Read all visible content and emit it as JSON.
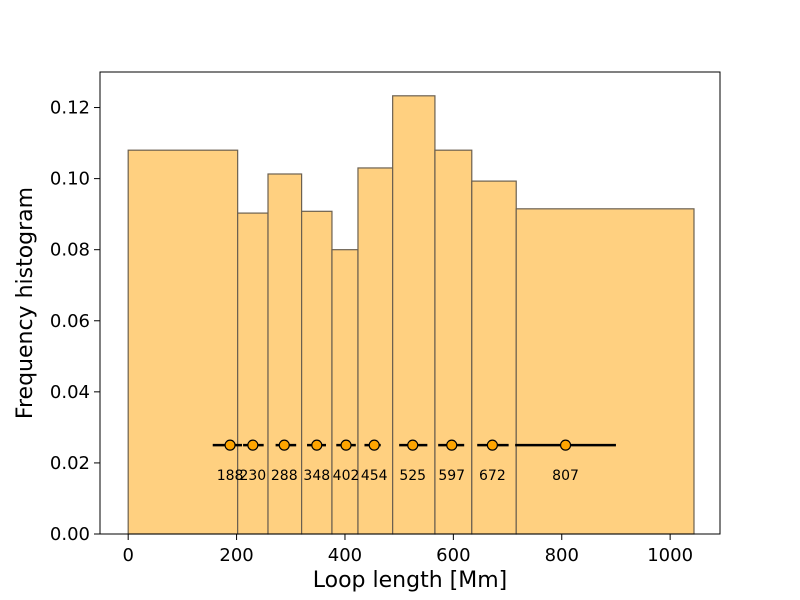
{
  "chart_data": {
    "type": "bar",
    "title": "",
    "xlabel": "Loop length [Mm]",
    "ylabel": "Frequency histogram",
    "xlim": [
      -52,
      1092
    ],
    "ylim": [
      0,
      0.13
    ],
    "x_ticks": [
      0,
      200,
      400,
      600,
      800,
      1000
    ],
    "y_ticks": [
      0.0,
      0.02,
      0.04,
      0.06,
      0.08,
      0.1,
      0.12
    ],
    "y_tick_labels": [
      "0.00",
      "0.02",
      "0.04",
      "0.06",
      "0.08",
      "0.10",
      "0.12"
    ],
    "grid": false,
    "bar_color": "#ffd080",
    "bar_edge_color": "#6b6050",
    "bins": [
      {
        "left": 0,
        "right": 202,
        "value": 0.108
      },
      {
        "left": 202,
        "right": 258,
        "value": 0.0903
      },
      {
        "left": 258,
        "right": 320,
        "value": 0.1013
      },
      {
        "left": 320,
        "right": 376,
        "value": 0.0908
      },
      {
        "left": 376,
        "right": 424,
        "value": 0.08
      },
      {
        "left": 424,
        "right": 488,
        "value": 0.103
      },
      {
        "left": 488,
        "right": 566,
        "value": 0.1233
      },
      {
        "left": 566,
        "right": 634,
        "value": 0.108
      },
      {
        "left": 634,
        "right": 716,
        "value": 0.0993
      },
      {
        "left": 716,
        "right": 1044,
        "value": 0.0915
      }
    ],
    "markers": {
      "y": 0.025,
      "color": "#ffa500",
      "points": [
        {
          "x": 188,
          "low": 156,
          "high": 210,
          "label": "188"
        },
        {
          "x": 230,
          "low": 212,
          "high": 250,
          "label": "230"
        },
        {
          "x": 288,
          "low": 272,
          "high": 310,
          "label": "288"
        },
        {
          "x": 348,
          "low": 330,
          "high": 365,
          "label": "348"
        },
        {
          "x": 402,
          "low": 384,
          "high": 420,
          "label": "402"
        },
        {
          "x": 454,
          "low": 436,
          "high": 466,
          "label": "454"
        },
        {
          "x": 525,
          "low": 500,
          "high": 552,
          "label": "525"
        },
        {
          "x": 597,
          "low": 572,
          "high": 620,
          "label": "597"
        },
        {
          "x": 672,
          "low": 644,
          "high": 702,
          "label": "672"
        },
        {
          "x": 807,
          "low": 714,
          "high": 900,
          "label": "807"
        }
      ]
    }
  }
}
